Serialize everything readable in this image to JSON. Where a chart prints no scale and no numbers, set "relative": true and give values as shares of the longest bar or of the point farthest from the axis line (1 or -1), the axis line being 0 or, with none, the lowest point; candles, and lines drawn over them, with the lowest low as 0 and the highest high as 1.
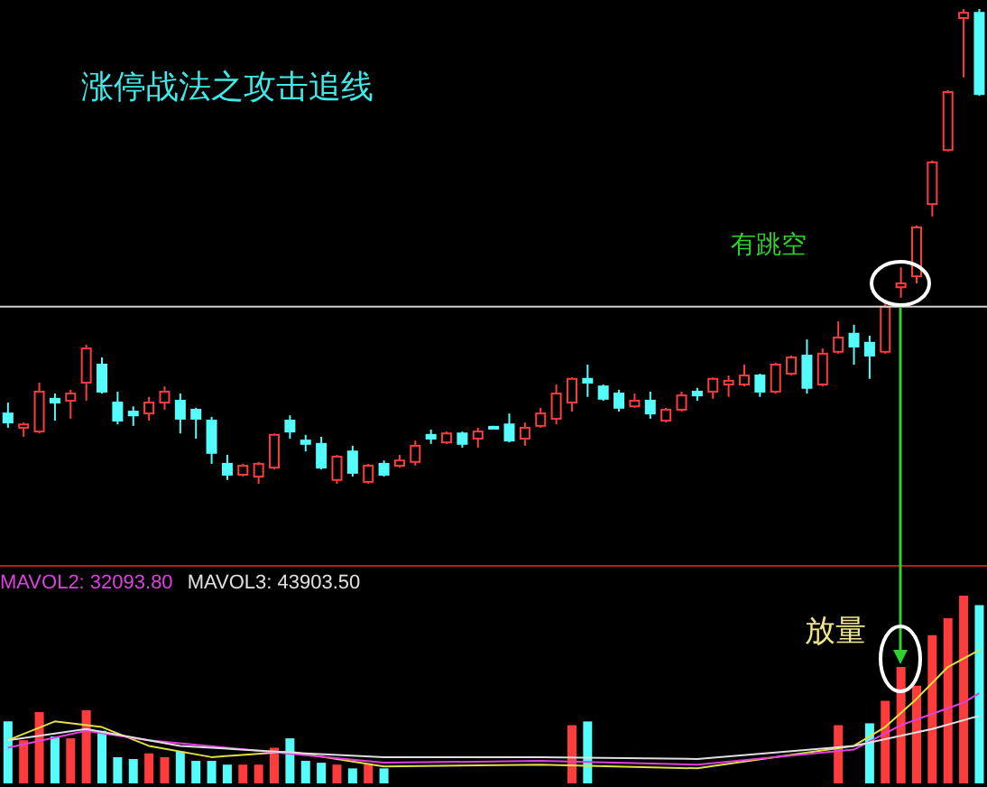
{
  "chart_data": [
    {
      "type": "candlestick",
      "title": "涨停战法之攻击追线",
      "relative": true,
      "categories": [
        null,
        null,
        null,
        null,
        null,
        null,
        null,
        null,
        null,
        null,
        null,
        null,
        null,
        null,
        null,
        null,
        null,
        null,
        null,
        null,
        null,
        null,
        null,
        null,
        null,
        null,
        null,
        null,
        null,
        null,
        null,
        null,
        null,
        null,
        null,
        null,
        null,
        null,
        null,
        null,
        null,
        null,
        null,
        null,
        null,
        null,
        null,
        null,
        null,
        null,
        null,
        null,
        null,
        null,
        null,
        null,
        null,
        null,
        null,
        null,
        null,
        null,
        null
      ],
      "ohlc": [
        [
          0.148,
          0.171,
          0.118,
          0.129
        ],
        [
          0.118,
          0.129,
          0.099,
          0.125
        ],
        [
          0.11,
          0.213,
          0.106,
          0.194
        ],
        [
          0.179,
          0.19,
          0.133,
          0.171
        ],
        [
          0.175,
          0.198,
          0.137,
          0.19
        ],
        [
          0.213,
          0.293,
          0.175,
          0.285
        ],
        [
          0.251,
          0.266,
          0.19,
          0.194
        ],
        [
          0.171,
          0.194,
          0.125,
          0.133
        ],
        [
          0.152,
          0.163,
          0.122,
          0.144
        ],
        [
          0.148,
          0.183,
          0.133,
          0.171
        ],
        [
          0.171,
          0.205,
          0.156,
          0.194
        ],
        [
          0.175,
          0.19,
          0.106,
          0.137
        ],
        [
          0.156,
          0.16,
          0.095,
          0.137
        ],
        [
          0.133,
          0.141,
          0.042,
          0.065
        ],
        [
          0.042,
          0.061,
          0.008,
          0.019
        ],
        [
          0.019,
          0.042,
          0.015,
          0.038
        ],
        [
          0.015,
          0.046,
          0,
          0.042
        ],
        [
          0.034,
          0.106,
          0.03,
          0.103
        ],
        [
          0.133,
          0.144,
          0.095,
          0.11
        ],
        [
          0.091,
          0.103,
          0.068,
          0.084
        ],
        [
          0.084,
          0.099,
          0.03,
          0.034
        ],
        [
          0.008,
          0.061,
          0,
          0.057
        ],
        [
          0.068,
          0.08,
          0.015,
          0.023
        ],
        [
          0.004,
          0.042,
          0,
          0.038
        ],
        [
          0.042,
          0.049,
          0.015,
          0.019
        ],
        [
          0.038,
          0.061,
          0.034,
          0.049
        ],
        [
          0.046,
          0.091,
          0.038,
          0.08
        ],
        [
          0.103,
          0.114,
          0.084,
          0.095
        ],
        [
          0.087,
          0.11,
          0.084,
          0.106
        ],
        [
          0.106,
          0.11,
          0.076,
          0.084
        ],
        [
          0.095,
          0.118,
          0.076,
          0.11
        ],
        [
          0.12,
          0.122,
          0.114,
          0.116
        ],
        [
          0.125,
          0.148,
          0.087,
          0.091
        ],
        [
          0.095,
          0.129,
          0.08,
          0.118
        ],
        [
          0.122,
          0.16,
          0.118,
          0.148
        ],
        [
          0.137,
          0.209,
          0.125,
          0.19
        ],
        [
          0.171,
          0.224,
          0.152,
          0.221
        ],
        [
          0.221,
          0.251,
          0.183,
          0.213
        ],
        [
          0.205,
          0.209,
          0.175,
          0.179
        ],
        [
          0.19,
          0.198,
          0.152,
          0.16
        ],
        [
          0.163,
          0.19,
          0.16,
          0.175
        ],
        [
          0.175,
          0.194,
          0.137,
          0.148
        ],
        [
          0.133,
          0.16,
          0.129,
          0.156
        ],
        [
          0.156,
          0.194,
          0.152,
          0.186
        ],
        [
          0.194,
          0.202,
          0.175,
          0.186
        ],
        [
          0.194,
          0.224,
          0.179,
          0.221
        ],
        [
          0.209,
          0.228,
          0.183,
          0.217
        ],
        [
          0.209,
          0.251,
          0.205,
          0.228
        ],
        [
          0.228,
          0.232,
          0.183,
          0.194
        ],
        [
          0.194,
          0.255,
          0.19,
          0.251
        ],
        [
          0.232,
          0.27,
          0.228,
          0.266
        ],
        [
          0.27,
          0.304,
          0.19,
          0.202
        ],
        [
          0.209,
          0.285,
          0.205,
          0.274
        ],
        [
          0.278,
          0.342,
          0.274,
          0.308
        ],
        [
          0.316,
          0.335,
          0.251,
          0.289
        ],
        [
          0.297,
          0.312,
          0.221,
          0.27
        ],
        [
          0.278,
          0.38,
          0.274,
          0.373
        ],
        [
          0.414,
          0.456,
          0.392,
          0.422
        ],
        [
          0.437,
          0.544,
          0.422,
          0.54
        ],
        [
          0.589,
          0.681,
          0.563,
          0.677
        ],
        [
          0.703,
          0.829,
          0.7,
          0.825
        ],
        [
          0.981,
          1,
          0.856,
          0.992
        ],
        [
          0.992,
          1,
          0.817,
          0.821
        ]
      ],
      "colors": [
        "#54fcfc",
        "#ff3c3c",
        "#ff3c3c",
        "#54fcfc",
        "#ff3c3c",
        "#ff3c3c",
        "#54fcfc",
        "#54fcfc",
        "#54fcfc",
        "#ff3c3c",
        "#ff3c3c",
        "#54fcfc",
        "#54fcfc",
        "#54fcfc",
        "#54fcfc",
        "#ff3c3c",
        "#ff3c3c",
        "#ff3c3c",
        "#54fcfc",
        "#54fcfc",
        "#54fcfc",
        "#ff3c3c",
        "#54fcfc",
        "#ff3c3c",
        "#54fcfc",
        "#ff3c3c",
        "#ff3c3c",
        "#54fcfc",
        "#ff3c3c",
        "#54fcfc",
        "#ff3c3c",
        "#54fcfc",
        "#54fcfc",
        "#ff3c3c",
        "#ff3c3c",
        "#ff3c3c",
        "#ff3c3c",
        "#54fcfc",
        "#54fcfc",
        "#54fcfc",
        "#ff3c3c",
        "#54fcfc",
        "#ff3c3c",
        "#ff3c3c",
        "#54fcfc",
        "#ff3c3c",
        "#ff3c3c",
        "#ff3c3c",
        "#54fcfc",
        "#ff3c3c",
        "#ff3c3c",
        "#54fcfc",
        "#ff3c3c",
        "#ff3c3c",
        "#54fcfc",
        "#54fcfc",
        "#ff3c3c",
        "#ff3c3c",
        "#ff3c3c",
        "#ff3c3c",
        "#ff3c3c",
        "#ff3c3c",
        "#54fcfc"
      ],
      "ref_lines": [
        {
          "axis": "y",
          "value": 0.373,
          "color": "#d0d0d0"
        }
      ],
      "annotations": [
        "有跳空"
      ]
    },
    {
      "type": "bar",
      "relative": true,
      "legend": "top left",
      "categories": [
        null,
        null,
        null,
        null,
        null,
        null,
        null,
        null,
        null,
        null,
        null,
        null,
        null,
        null,
        null,
        null,
        null,
        null,
        null,
        null,
        null,
        null,
        null,
        null,
        null,
        null,
        null,
        null,
        null,
        null,
        null,
        null,
        null,
        null,
        null,
        null,
        null,
        null,
        null,
        null,
        null,
        null,
        null,
        null,
        null,
        null,
        null,
        null,
        null,
        null,
        null,
        null,
        null,
        null,
        null,
        null,
        null,
        null,
        null,
        null,
        null,
        null,
        null
      ],
      "series": [
        {
          "type": "bar",
          "colors": [
            "#54fcfc",
            "#ff3c3c",
            "#ff3c3c",
            "#54fcfc",
            "#ff3c3c",
            "#ff3c3c",
            "#54fcfc",
            "#54fcfc",
            "#54fcfc",
            "#ff3c3c",
            "#ff3c3c",
            "#54fcfc",
            "#54fcfc",
            "#54fcfc",
            "#54fcfc",
            "#ff3c3c",
            "#ff3c3c",
            "#ff3c3c",
            "#54fcfc",
            "#54fcfc",
            "#54fcfc",
            "#ff3c3c",
            "#54fcfc",
            "#ff3c3c",
            "#54fcfc",
            "#ff3c3c",
            "#ff3c3c",
            "#54fcfc",
            "#ff3c3c",
            "#54fcfc",
            "#ff3c3c",
            "#54fcfc",
            "#54fcfc",
            "#ff3c3c",
            "#ff3c3c",
            "#ff3c3c",
            "#ff3c3c",
            "#54fcfc",
            "#54fcfc",
            "#54fcfc",
            "#ff3c3c",
            "#54fcfc",
            "#ff3c3c",
            "#ff3c3c",
            "#54fcfc",
            "#ff3c3c",
            "#ff3c3c",
            "#ff3c3c",
            "#54fcfc",
            "#ff3c3c",
            "#ff3c3c",
            "#54fcfc",
            "#ff3c3c",
            "#ff3c3c",
            "#54fcfc",
            "#54fcfc",
            "#ff3c3c",
            "#ff3c3c",
            "#ff3c3c",
            "#ff3c3c",
            "#ff3c3c",
            "#ff3c3c",
            "#54fcfc"
          ],
          "values": [
            0.33,
            0.23,
            0.38,
            0.25,
            0.24,
            0.39,
            0.28,
            0.14,
            0.13,
            0.16,
            0.14,
            0.17,
            0.12,
            0.12,
            0.1,
            0.1,
            0.1,
            0.19,
            0.24,
            0.12,
            0.11,
            0.1,
            0.08,
            0.1,
            0.08,
            null,
            null,
            null,
            null,
            null,
            null,
            null,
            null,
            null,
            null,
            null,
            0.31,
            0.33,
            null,
            null,
            null,
            null,
            null,
            null,
            null,
            null,
            null,
            null,
            null,
            null,
            null,
            null,
            null,
            0.31,
            null,
            0.32,
            0.44,
            0.62,
            0.52,
            0.79,
            0.88,
            1,
            0.95
          ]
        },
        {
          "type": "line",
          "color": "#e0e040",
          "values": [
            0.23,
            null,
            null,
            0.33,
            null,
            null,
            0.3,
            null,
            null,
            0.2,
            null,
            null,
            null,
            0.14,
            null,
            null,
            null,
            null,
            0.17,
            null,
            null,
            null,
            null,
            null,
            0.09,
            null,
            null,
            null,
            null,
            null,
            null,
            null,
            null,
            null,
            0.1,
            null,
            null,
            null,
            null,
            null,
            null,
            null,
            null,
            null,
            0.08,
            null,
            null,
            null,
            null,
            null,
            null,
            null,
            null,
            null,
            0.2,
            null,
            0.3,
            null,
            0.45,
            null,
            0.62,
            null,
            0.71
          ]
        },
        {
          "type": "line",
          "name": "MAVOL2: 32093.80",
          "color": "#e040e0",
          "values": [
            0.19,
            null,
            null,
            null,
            null,
            0.28,
            null,
            null,
            null,
            0.23,
            null,
            null,
            null,
            null,
            0.19,
            null,
            null,
            null,
            null,
            0.15,
            null,
            null,
            null,
            null,
            0.11,
            null,
            null,
            null,
            null,
            null,
            null,
            null,
            null,
            null,
            0.12,
            null,
            null,
            null,
            null,
            null,
            null,
            null,
            null,
            null,
            0.1,
            null,
            null,
            null,
            null,
            null,
            null,
            null,
            null,
            null,
            0.18,
            null,
            null,
            0.31,
            null,
            0.37,
            null,
            0.43,
            0.48
          ]
        },
        {
          "type": "line",
          "name": "MAVOL3: 43903.50",
          "color": "#e0e0e0",
          "values": [
            0.23,
            null,
            null,
            null,
            null,
            0.29,
            null,
            null,
            null,
            null,
            null,
            0.2,
            null,
            null,
            null,
            null,
            null,
            null,
            null,
            0.16,
            null,
            null,
            null,
            null,
            0.14,
            null,
            null,
            null,
            null,
            null,
            null,
            null,
            null,
            null,
            0.14,
            null,
            null,
            null,
            null,
            null,
            null,
            null,
            null,
            null,
            0.13,
            null,
            null,
            null,
            null,
            null,
            null,
            null,
            null,
            null,
            0.2,
            null,
            null,
            null,
            null,
            0.29,
            null,
            null,
            0.36
          ]
        }
      ],
      "annotations": [
        "放量"
      ]
    }
  ]
}
